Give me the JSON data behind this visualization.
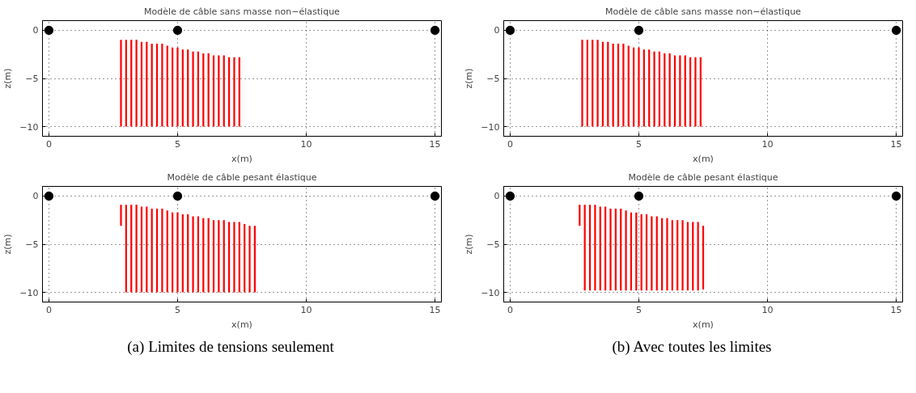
{
  "chart_data": [
    {
      "type": "bar",
      "title": "Modèle de câble sans masse non−élastique",
      "xlabel": "x(m)",
      "ylabel": "z(m)",
      "xlim": [
        -0.25,
        15.25
      ],
      "ylim": [
        -11,
        1
      ],
      "xticks": [
        0,
        5,
        10,
        15
      ],
      "yticks": [
        -10,
        -5,
        0
      ],
      "grid": true,
      "series": [
        {
          "type": "bar",
          "color": "#ff0000",
          "x": [
            2.8,
            3.0,
            3.2,
            3.4,
            3.6,
            3.8,
            4.0,
            4.2,
            4.4,
            4.6,
            4.8,
            5.0,
            5.2,
            5.4,
            5.6,
            5.8,
            6.0,
            6.2,
            6.4,
            6.6,
            6.8,
            7.0,
            7.2,
            7.4
          ],
          "base": [
            -10,
            -10,
            -10,
            -10,
            -10,
            -10,
            -10,
            -10,
            -10,
            -10,
            -10,
            -10,
            -10,
            -10,
            -10,
            -10,
            -10,
            -10,
            -10,
            -10,
            -10,
            -10,
            -10,
            -10
          ],
          "values": [
            9.0,
            9.0,
            9.0,
            9.0,
            8.8,
            8.8,
            8.6,
            8.6,
            8.6,
            8.4,
            8.2,
            8.2,
            8.0,
            8.0,
            7.8,
            7.8,
            7.6,
            7.6,
            7.4,
            7.4,
            7.4,
            7.2,
            7.2,
            7.2
          ]
        },
        {
          "type": "scatter",
          "color": "#000000",
          "marker": "circle",
          "x": [
            0,
            5,
            15
          ],
          "values": [
            0,
            0,
            0
          ]
        }
      ]
    },
    {
      "type": "bar",
      "title": "Modèle de câble sans masse non−élastique",
      "xlabel": "x(m)",
      "ylabel": "z(m)",
      "xlim": [
        -0.25,
        15.25
      ],
      "ylim": [
        -11,
        1
      ],
      "xticks": [
        0,
        5,
        10,
        15
      ],
      "yticks": [
        -10,
        -5,
        0
      ],
      "grid": true,
      "series": [
        {
          "type": "bar",
          "color": "#ff0000",
          "x": [
            2.8,
            3.0,
            3.2,
            3.4,
            3.6,
            3.8,
            4.0,
            4.2,
            4.4,
            4.6,
            4.8,
            5.0,
            5.2,
            5.4,
            5.6,
            5.8,
            6.0,
            6.2,
            6.4,
            6.6,
            6.8,
            7.0,
            7.2,
            7.4
          ],
          "base": [
            -10,
            -10,
            -10,
            -10,
            -10,
            -10,
            -10,
            -10,
            -10,
            -10,
            -10,
            -10,
            -10,
            -10,
            -10,
            -10,
            -10,
            -10,
            -10,
            -10,
            -10,
            -10,
            -10,
            -10
          ],
          "values": [
            9.0,
            9.0,
            9.0,
            9.0,
            8.8,
            8.8,
            8.6,
            8.6,
            8.6,
            8.4,
            8.2,
            8.2,
            8.0,
            8.0,
            7.8,
            7.8,
            7.6,
            7.6,
            7.4,
            7.4,
            7.4,
            7.2,
            7.2,
            7.2
          ]
        },
        {
          "type": "scatter",
          "color": "#000000",
          "marker": "circle",
          "x": [
            0,
            5,
            15
          ],
          "values": [
            0,
            0,
            0
          ]
        }
      ]
    },
    {
      "type": "bar",
      "title": "Modèle de câble pesant élastique",
      "xlabel": "x(m)",
      "ylabel": "z(m)",
      "xlim": [
        -0.25,
        15.25
      ],
      "ylim": [
        -11,
        1
      ],
      "xticks": [
        0,
        5,
        10,
        15
      ],
      "yticks": [
        -10,
        -5,
        0
      ],
      "grid": true,
      "annotations": [
        "(a) Limites de tensions seulement"
      ],
      "series": [
        {
          "color": "#ff0000",
          "x": [
            2.8,
            3.0,
            3.2,
            3.4,
            3.6,
            3.8,
            4.0,
            4.2,
            4.4,
            4.6,
            4.8,
            5.0,
            5.2,
            5.4,
            5.6,
            5.8,
            6.0,
            6.2,
            6.4,
            6.6,
            6.8,
            7.0,
            7.2,
            7.4,
            7.6,
            7.8,
            8.0
          ],
          "base": [
            -3.1,
            -10,
            -10,
            -10,
            -10,
            -10,
            -10,
            -10,
            -10,
            -10,
            -10,
            -10,
            -10,
            -10,
            -10,
            -10,
            -10,
            -10,
            -10,
            -10,
            -10,
            -10,
            -10,
            -10,
            -10,
            -10,
            -10
          ],
          "values": [
            2.2,
            9.1,
            9.1,
            9.1,
            8.9,
            8.9,
            8.7,
            8.7,
            8.7,
            8.5,
            8.3,
            8.3,
            8.1,
            8.1,
            7.9,
            7.9,
            7.7,
            7.7,
            7.5,
            7.5,
            7.5,
            7.3,
            7.3,
            7.3,
            7.1,
            6.9,
            6.9
          ]
        },
        {
          "type": "scatter",
          "color": "#000000",
          "marker": "circle",
          "x": [
            0,
            5,
            15
          ],
          "values": [
            0,
            0,
            0
          ]
        }
      ]
    },
    {
      "type": "bar",
      "title": "Modèle de câble pesant élastique",
      "xlabel": "x(m)",
      "ylabel": "z(m)",
      "xlim": [
        -0.25,
        15.25
      ],
      "ylim": [
        -11,
        1
      ],
      "xticks": [
        0,
        5,
        10,
        15
      ],
      "yticks": [
        -10,
        -5,
        0
      ],
      "grid": true,
      "annotations": [
        "(b) Avec toutes les limites"
      ],
      "series": [
        {
          "color": "#ff0000",
          "x": [
            2.7,
            2.9,
            3.1,
            3.3,
            3.5,
            3.7,
            3.9,
            4.1,
            4.3,
            4.5,
            4.7,
            4.9,
            5.1,
            5.3,
            5.5,
            5.7,
            5.9,
            6.1,
            6.3,
            6.5,
            6.7,
            6.9,
            7.1,
            7.3,
            7.5
          ],
          "base": [
            -3.1,
            -9.8,
            -9.8,
            -9.8,
            -9.8,
            -9.8,
            -9.8,
            -9.8,
            -9.8,
            -9.8,
            -9.8,
            -9.8,
            -9.8,
            -9.8,
            -9.8,
            -9.8,
            -9.8,
            -9.8,
            -9.8,
            -9.8,
            -9.8,
            -9.8,
            -9.8,
            -9.8,
            -9.7
          ],
          "values": [
            2.2,
            8.9,
            8.9,
            8.9,
            8.7,
            8.7,
            8.5,
            8.5,
            8.5,
            8.3,
            8.1,
            8.1,
            7.9,
            7.9,
            7.7,
            7.7,
            7.5,
            7.5,
            7.3,
            7.3,
            7.3,
            7.1,
            7.1,
            7.1,
            6.6
          ]
        },
        {
          "type": "scatter",
          "color": "#000000",
          "marker": "circle",
          "x": [
            0,
            5,
            15
          ],
          "values": [
            0,
            0,
            0
          ]
        }
      ]
    }
  ]
}
